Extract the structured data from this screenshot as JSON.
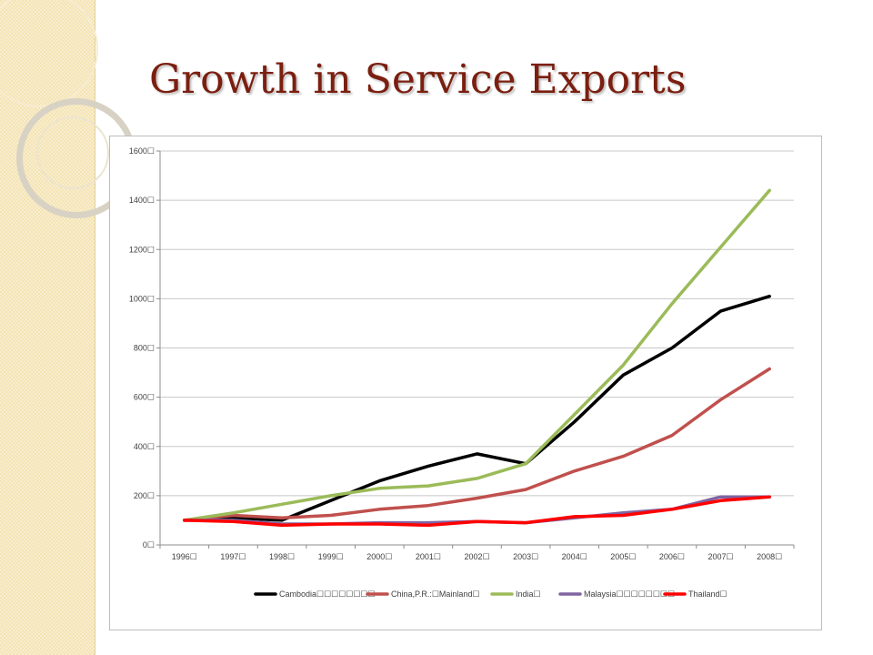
{
  "slide": {
    "title": "Growth in Service Exports"
  },
  "chart_data": {
    "type": "line",
    "title": "",
    "xlabel": "",
    "ylabel": "",
    "ylim": [
      0,
      1600
    ],
    "y_ticks": [
      "0☐",
      "200☐",
      "400☐",
      "600☐",
      "800☐",
      "1000☐",
      "1200☐",
      "1400☐",
      "1600☐"
    ],
    "y_tick_values": [
      0,
      200,
      400,
      600,
      800,
      1000,
      1200,
      1400,
      1600
    ],
    "categories": [
      "1996☐",
      "1997☐",
      "1998☐",
      "1999☐",
      "2000☐",
      "2001☐",
      "2002☐",
      "2003☐",
      "2004☐",
      "2005☐",
      "2006☐",
      "2007☐",
      "2008☐"
    ],
    "grid": true,
    "legend_position": "bottom",
    "series": [
      {
        "name": "Cambodia☐☐☐☐☐☐☐☐",
        "color": "#000000",
        "values": [
          100,
          110,
          100,
          180,
          260,
          320,
          370,
          330,
          500,
          690,
          800,
          950,
          1010
        ]
      },
      {
        "name": "China,P.R.:☐Mainland☐",
        "color": "#c0504d",
        "values": [
          100,
          120,
          110,
          120,
          145,
          160,
          190,
          225,
          300,
          360,
          445,
          590,
          715
        ]
      },
      {
        "name": "India☐",
        "color": "#9bbb59",
        "values": [
          100,
          130,
          165,
          200,
          230,
          240,
          270,
          330,
          530,
          730,
          980,
          1210,
          1440
        ]
      },
      {
        "name": "Malaysia☐☐☐☐☐☐☐☐",
        "color": "#8064a2",
        "values": [
          100,
          100,
          85,
          85,
          90,
          90,
          95,
          90,
          110,
          130,
          145,
          195,
          195
        ]
      },
      {
        "name": "Thailand☐",
        "color": "#ff0000",
        "values": [
          100,
          95,
          80,
          85,
          85,
          80,
          95,
          90,
          115,
          120,
          145,
          180,
          195
        ]
      }
    ]
  }
}
